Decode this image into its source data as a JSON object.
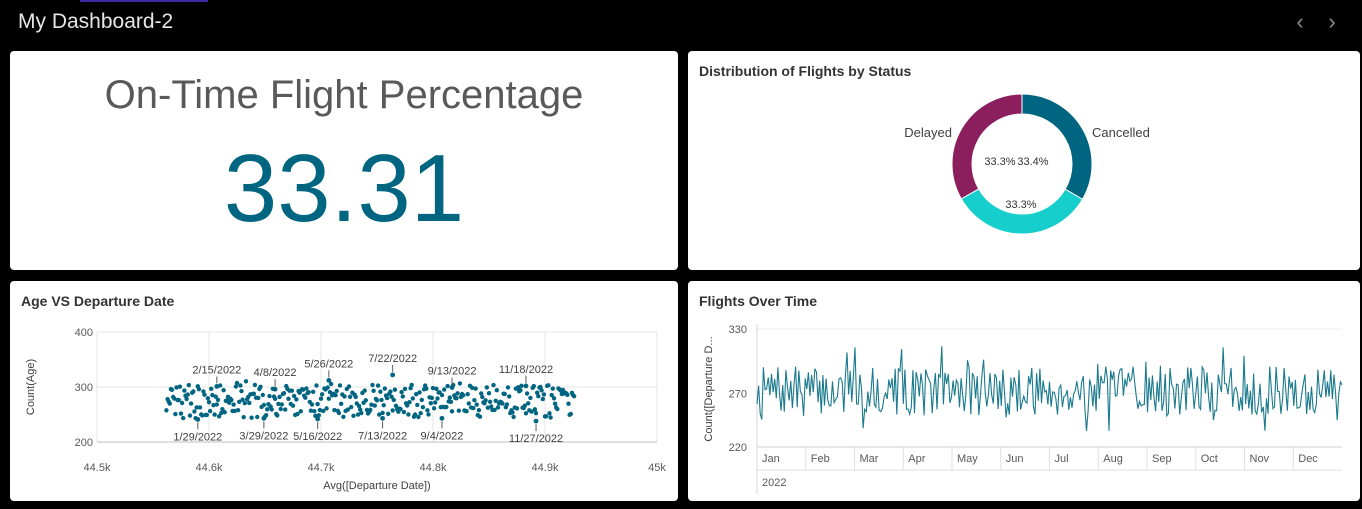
{
  "dashboard": {
    "title": "My Dashboard-2"
  },
  "nav": {
    "prev_icon": "chevron-left-icon",
    "next_icon": "chevron-right-icon",
    "prev_glyph": "‹",
    "next_glyph": "›"
  },
  "colors": {
    "teal_dark": "#006580",
    "teal_light": "#16cfcc",
    "plum": "#8b1f5d",
    "kpi": "#006580"
  },
  "kpi": {
    "title": "On-Time Flight Percentage",
    "value": "33.31"
  },
  "status_chart": {
    "title": "Distribution of Flights by Status",
    "chart_data": {
      "type": "pie",
      "donut": true,
      "slices": [
        {
          "label": "Cancelled",
          "value": 33.4,
          "display": "33.4%",
          "color": "#006580"
        },
        {
          "label": "",
          "value": 33.3,
          "display": "33.3%",
          "color": "#16cfcc"
        },
        {
          "label": "Delayed",
          "value": 33.3,
          "display": "33.3%",
          "color": "#8b1f5d"
        }
      ]
    }
  },
  "scatter_chart": {
    "title": "Age VS Departure Date",
    "chart_data": {
      "type": "scatter",
      "xlabel": "Avg([Departure Date])",
      "ylabel": "Count(Age)",
      "xlim": [
        44500,
        45000
      ],
      "ylim": [
        200,
        400
      ],
      "xticks": [
        44500,
        44600,
        44700,
        44800,
        44900,
        45000
      ],
      "xtick_labels": [
        "44.5k",
        "44.6k",
        "44.7k",
        "44.8k",
        "44.9k",
        "45k"
      ],
      "yticks": [
        200,
        300,
        400
      ],
      "ytick_labels": [
        "200",
        "300",
        "400"
      ],
      "grid": true,
      "x_range_points": [
        44562,
        44926
      ],
      "annotations": [
        {
          "text": "1/29/2022",
          "x": 44590,
          "y": 241,
          "pos": "below"
        },
        {
          "text": "2/15/2022",
          "x": 44607,
          "y": 301,
          "pos": "above"
        },
        {
          "text": "3/29/2022",
          "x": 44649,
          "y": 243,
          "pos": "below"
        },
        {
          "text": "4/8/2022",
          "x": 44659,
          "y": 296,
          "pos": "above"
        },
        {
          "text": "5/16/2022",
          "x": 44697,
          "y": 242,
          "pos": "below"
        },
        {
          "text": "5/26/2022",
          "x": 44707,
          "y": 312,
          "pos": "above"
        },
        {
          "text": "7/13/2022",
          "x": 44755,
          "y": 243,
          "pos": "below"
        },
        {
          "text": "7/22/2022",
          "x": 44764,
          "y": 322,
          "pos": "above"
        },
        {
          "text": "9/4/2022",
          "x": 44808,
          "y": 243,
          "pos": "below"
        },
        {
          "text": "9/13/2022",
          "x": 44817,
          "y": 299,
          "pos": "above"
        },
        {
          "text": "11/18/2022",
          "x": 44883,
          "y": 302,
          "pos": "above"
        },
        {
          "text": "11/27/2022",
          "x": 44892,
          "y": 238,
          "pos": "below"
        }
      ]
    }
  },
  "line_chart": {
    "title": "Flights Over Time",
    "chart_data": {
      "type": "line",
      "ylabel": "Count([Departure D...",
      "ylim": [
        220,
        330
      ],
      "yticks": [
        220,
        270,
        330
      ],
      "ytick_labels": [
        "220",
        "270",
        "330"
      ],
      "x_months": [
        "Jan",
        "Feb",
        "Mar",
        "Apr",
        "May",
        "Jun",
        "Jul",
        "Aug",
        "Sep",
        "Oct",
        "Nov",
        "Dec"
      ],
      "x_year": "2022",
      "x_days": 365,
      "series_color": "#1b7a8d",
      "range_hint": [
        235,
        325
      ]
    }
  }
}
